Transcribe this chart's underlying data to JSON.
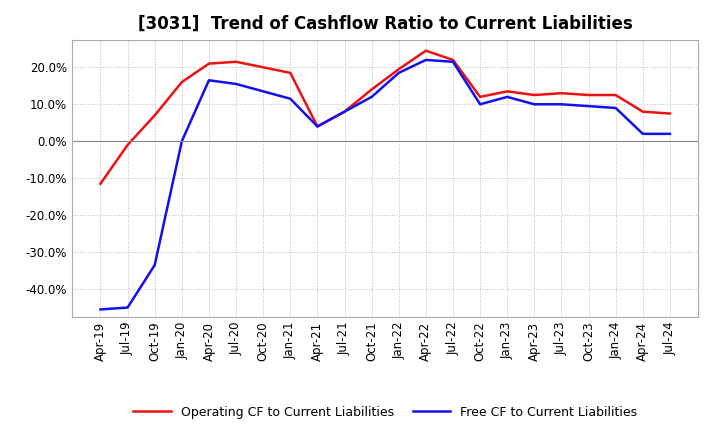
{
  "title": "[3031]  Trend of Cashflow Ratio to Current Liabilities",
  "x_labels": [
    "Apr-19",
    "Jul-19",
    "Oct-19",
    "Jan-20",
    "Apr-20",
    "Jul-20",
    "Oct-20",
    "Jan-21",
    "Apr-21",
    "Jul-21",
    "Oct-21",
    "Jan-22",
    "Apr-22",
    "Jul-22",
    "Oct-22",
    "Jan-23",
    "Apr-23",
    "Jul-23",
    "Oct-23",
    "Jan-24",
    "Apr-24",
    "Jul-24"
  ],
  "operating_cf": [
    -0.115,
    -0.01,
    0.07,
    0.16,
    0.21,
    0.215,
    0.2,
    0.185,
    0.04,
    0.08,
    0.14,
    0.195,
    0.245,
    0.22,
    0.12,
    0.135,
    0.125,
    0.13,
    0.125,
    0.125,
    0.08,
    0.075
  ],
  "free_cf": [
    -0.455,
    -0.45,
    -0.335,
    0.0,
    0.165,
    0.155,
    0.135,
    0.115,
    0.04,
    0.08,
    0.12,
    0.185,
    0.22,
    0.215,
    0.1,
    0.12,
    0.1,
    0.1,
    0.095,
    0.09,
    0.02,
    0.02
  ],
  "operating_color": "#EE1111",
  "free_color": "#1111EE",
  "ylim_min": -0.475,
  "ylim_max": 0.275,
  "yticks": [
    -0.4,
    -0.3,
    -0.2,
    -0.1,
    0.0,
    0.1,
    0.2
  ],
  "background_color": "#FFFFFF",
  "plot_bg_color": "#FFFFFF",
  "grid_color": "#BBBBBB",
  "legend_operating": "Operating CF to Current Liabilities",
  "legend_free": "Free CF to Current Liabilities",
  "title_fontsize": 12,
  "tick_fontsize": 8.5,
  "legend_fontsize": 9
}
